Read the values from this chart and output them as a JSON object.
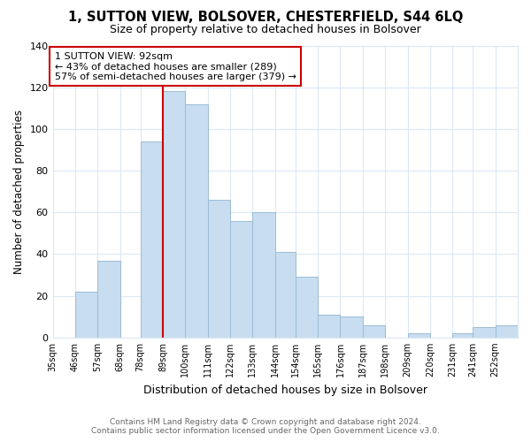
{
  "title": "1, SUTTON VIEW, BOLSOVER, CHESTERFIELD, S44 6LQ",
  "subtitle": "Size of property relative to detached houses in Bolsover",
  "xlabel": "Distribution of detached houses by size in Bolsover",
  "ylabel": "Number of detached properties",
  "bar_color": "#c8ddf0",
  "bar_edge_color": "#9bbdd4",
  "vline_color": "#cc0000",
  "vline_x": 89,
  "annotation_text": "1 SUTTON VIEW: 92sqm\n← 43% of detached houses are smaller (289)\n57% of semi-detached houses are larger (379) →",
  "annotation_box_color": "#ffffff",
  "annotation_box_edge": "#cc0000",
  "bins": [
    35,
    46,
    57,
    68,
    78,
    89,
    100,
    111,
    122,
    133,
    144,
    154,
    165,
    176,
    187,
    198,
    209,
    220,
    231,
    241,
    252,
    263
  ],
  "counts": [
    0,
    22,
    37,
    0,
    94,
    118,
    112,
    66,
    56,
    60,
    41,
    29,
    11,
    10,
    6,
    0,
    2,
    0,
    2,
    5,
    6
  ],
  "ylim": [
    0,
    140
  ],
  "yticks": [
    0,
    20,
    40,
    60,
    80,
    100,
    120,
    140
  ],
  "tick_labels": [
    "35sqm",
    "46sqm",
    "57sqm",
    "68sqm",
    "78sqm",
    "89sqm",
    "100sqm",
    "111sqm",
    "122sqm",
    "133sqm",
    "144sqm",
    "154sqm",
    "165sqm",
    "176sqm",
    "187sqm",
    "198sqm",
    "209sqm",
    "220sqm",
    "231sqm",
    "241sqm",
    "252sqm"
  ],
  "footer_line1": "Contains HM Land Registry data © Crown copyright and database right 2024.",
  "footer_line2": "Contains public sector information licensed under the Open Government Licence v3.0.",
  "background_color": "#ffffff",
  "grid_color": "#dce8f5"
}
